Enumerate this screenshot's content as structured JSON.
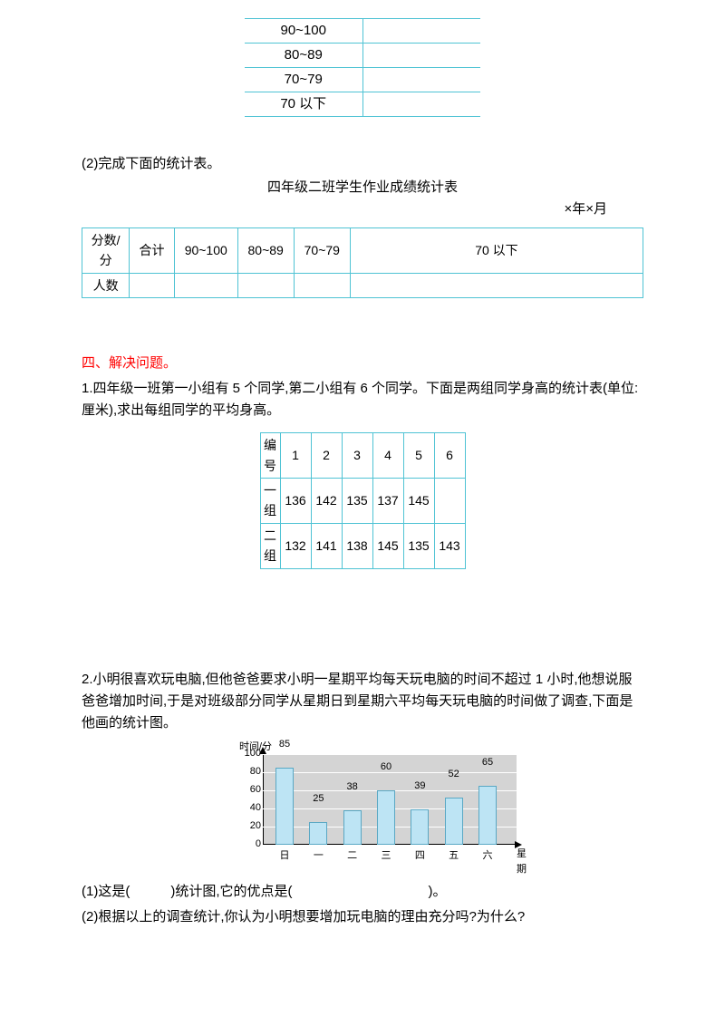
{
  "table1": {
    "rows": [
      "90~100",
      "80~89",
      "70~79",
      "70 以下"
    ]
  },
  "q2_intro": "(2)完成下面的统计表。",
  "q2_title": "四年级二班学生作业成绩统计表",
  "q2_date": "×年×月",
  "table2": {
    "h1": "分数/分",
    "h2": "合计",
    "h3": "90~100",
    "h4": "80~89",
    "h5": "70~79",
    "h6": "70 以下",
    "r2": "人数"
  },
  "section4_title": "四、解决问题。",
  "problem1": "1.四年级一班第一小组有 5 个同学,第二小组有 6 个同学。下面是两组同学身高的统计表(单位:厘米),求出每组同学的平均身高。",
  "table3": {
    "h0": "编号",
    "cols": [
      "1",
      "2",
      "3",
      "4",
      "5",
      "6"
    ],
    "r1_label": "一组",
    "r1": [
      "136",
      "142",
      "135",
      "137",
      "145",
      ""
    ],
    "r2_label": "二组",
    "r2": [
      "132",
      "141",
      "138",
      "145",
      "135",
      "143"
    ]
  },
  "problem2": "2.小明很喜欢玩电脑,但他爸爸要求小明一星期平均每天玩电脑的时间不超过 1 小时,他想说服爸爸增加时间,于是对班级部分同学从星期日到星期六平均每天玩电脑的时间做了调查,下面是他画的统计图。",
  "chart": {
    "y_label": "时间/分",
    "x_label": "星期",
    "y_max": 100,
    "y_ticks": [
      0,
      20,
      40,
      60,
      80,
      100
    ],
    "categories": [
      "日",
      "一",
      "二",
      "三",
      "四",
      "五",
      "六"
    ],
    "values": [
      85,
      25,
      38,
      60,
      39,
      52,
      65
    ],
    "bar_color": "#bde4f4",
    "bar_border": "#5aa8c4",
    "bg_color": "#d4d4d4",
    "grid_color": "#ffffff"
  },
  "sub1": "(1)这是(　　　)统计图,它的优点是(　　　　　　　　　　)。",
  "sub2": "(2)根据以上的调查统计,你认为小明想要增加玩电脑的理由充分吗?为什么?"
}
